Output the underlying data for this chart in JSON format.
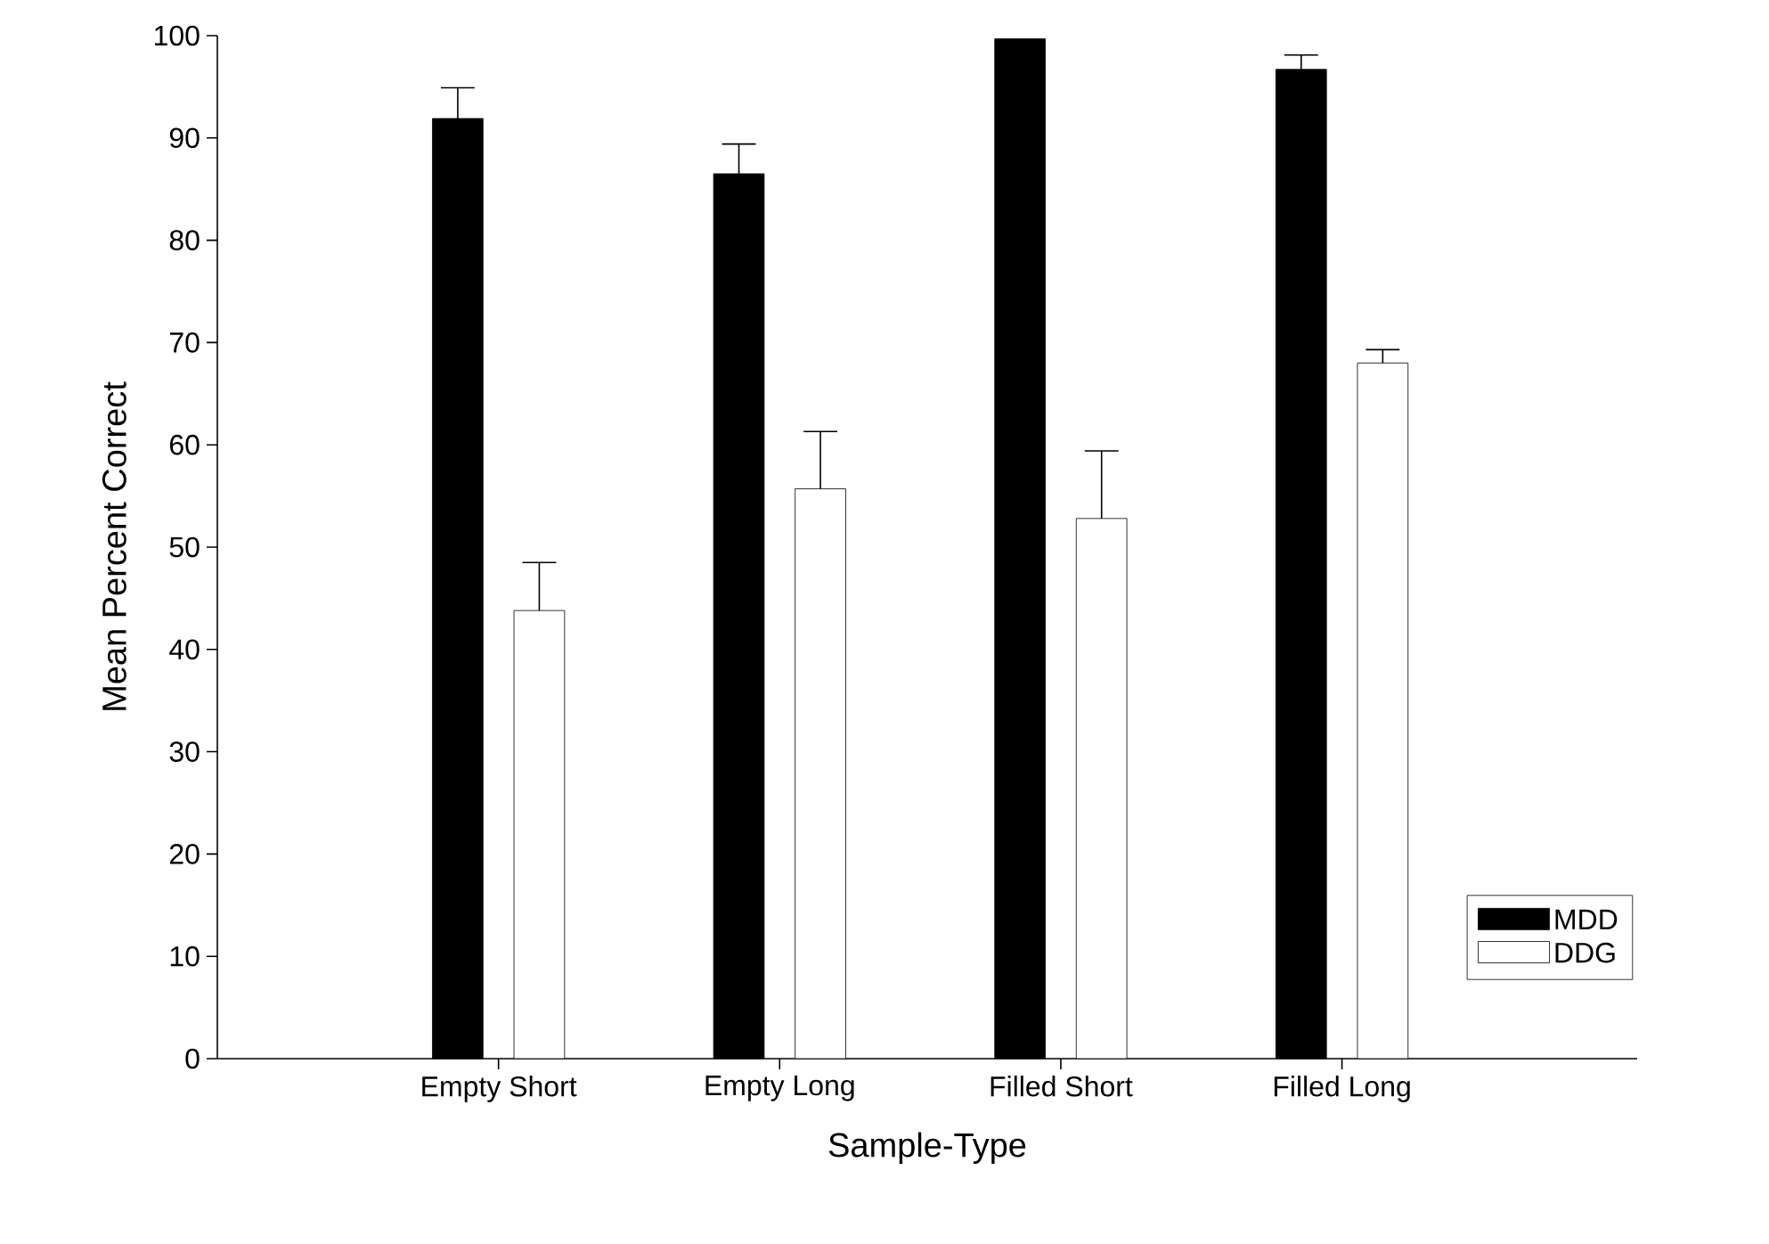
{
  "chart_data": {
    "type": "bar",
    "xlabel": "Sample-Type",
    "ylabel": "Mean Percent Correct",
    "categories": [
      "Empty Short",
      "Empty Long",
      "Filled Short",
      "Filled Long"
    ],
    "series": [
      {
        "name": "MDD",
        "color": "#000000",
        "values": [
          91.9,
          86.5,
          99.7,
          96.7
        ],
        "errors": [
          3.0,
          2.9,
          null,
          1.4
        ]
      },
      {
        "name": "DDG",
        "color": "#ffffff",
        "values": [
          43.8,
          55.7,
          52.8,
          68.0
        ],
        "errors": [
          4.7,
          5.6,
          6.6,
          1.3
        ]
      }
    ],
    "ylim": [
      0,
      100
    ],
    "yticks": [
      0,
      10,
      20,
      30,
      40,
      50,
      60,
      70,
      80,
      90,
      100
    ],
    "legend": "bottom right",
    "grid": false
  }
}
